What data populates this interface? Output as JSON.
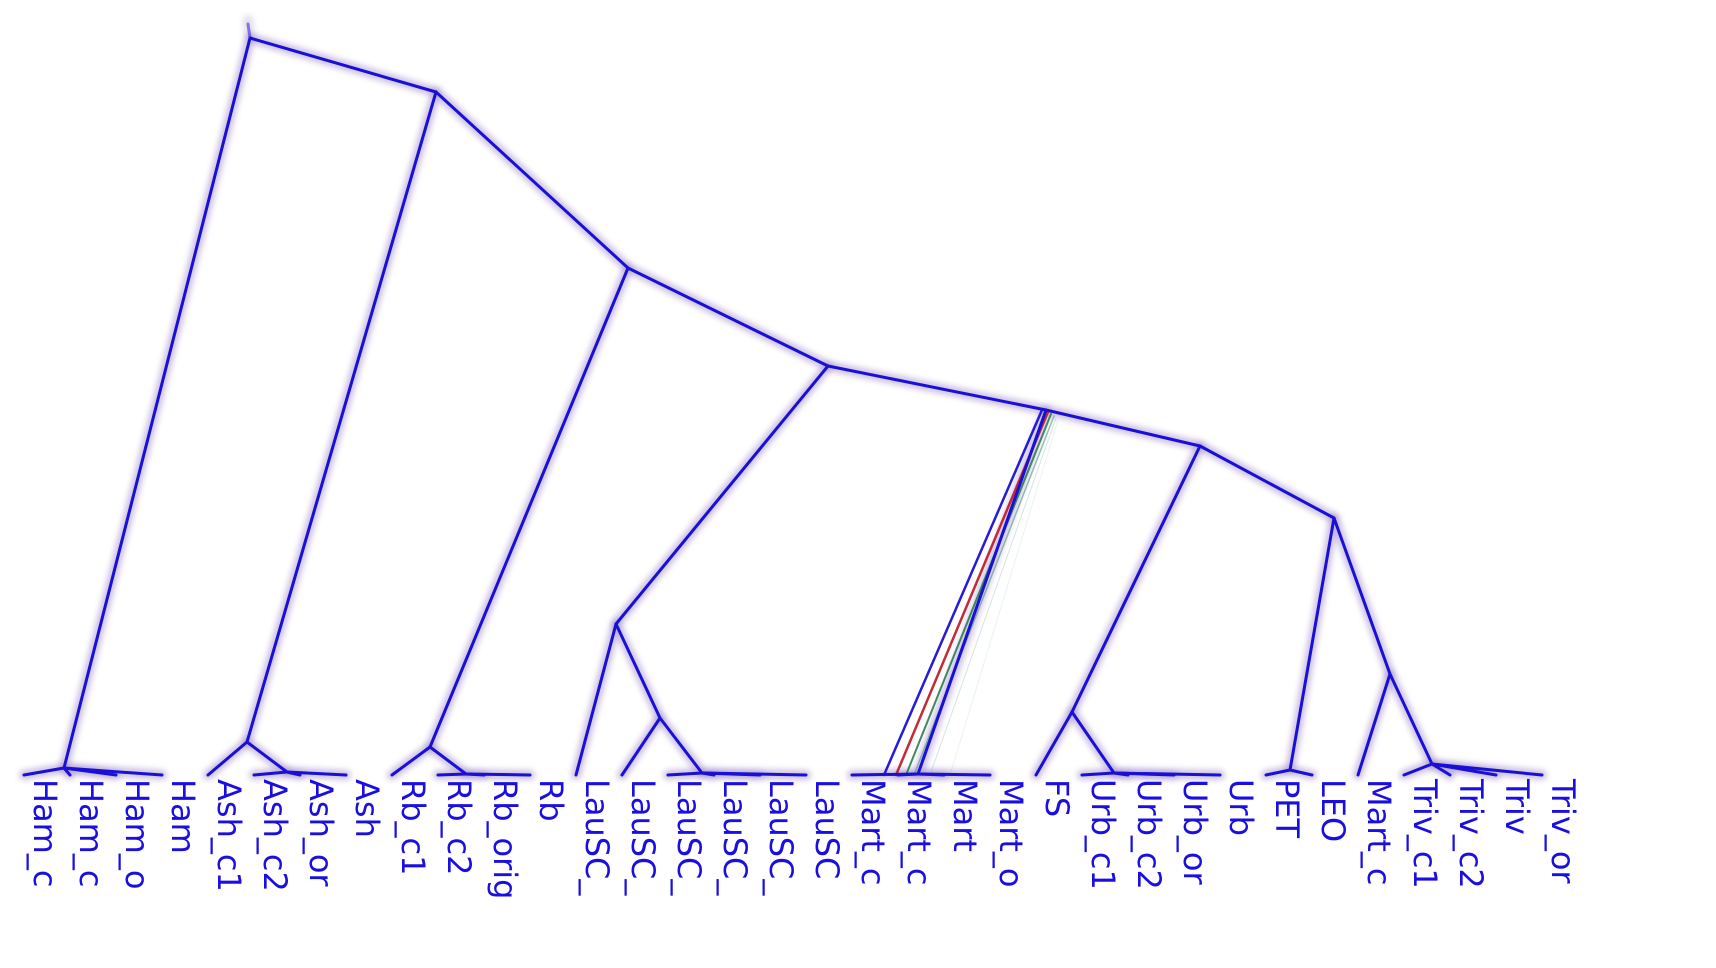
{
  "tree": {
    "colors": {
      "main": "#1a0fd6",
      "halo": "#6b4aa8",
      "alt_red": "#c0202a",
      "alt_green": "#2e7d4f",
      "alt_teal": "#4a9a7a",
      "label": "#1a0fe0"
    },
    "tips": [
      {
        "id": "t1",
        "label": "Ham_c"
      },
      {
        "id": "t2",
        "label": "Ham_c"
      },
      {
        "id": "t3",
        "label": "Ham_o"
      },
      {
        "id": "t4",
        "label": "Ham"
      },
      {
        "id": "t5",
        "label": "Ash_c1"
      },
      {
        "id": "t6",
        "label": "Ash_c2"
      },
      {
        "id": "t7",
        "label": "Ash_or"
      },
      {
        "id": "t8",
        "label": "Ash"
      },
      {
        "id": "t9",
        "label": "Rb_c1"
      },
      {
        "id": "t10",
        "label": "Rb_c2"
      },
      {
        "id": "t11",
        "label": "Rb_orig"
      },
      {
        "id": "t12",
        "label": "Rb"
      },
      {
        "id": "t13",
        "label": "LauSC_"
      },
      {
        "id": "t14",
        "label": "LauSC_"
      },
      {
        "id": "t15",
        "label": "LauSC_"
      },
      {
        "id": "t16",
        "label": "LauSC_"
      },
      {
        "id": "t17",
        "label": "LauSC_"
      },
      {
        "id": "t18",
        "label": "LauSC"
      },
      {
        "id": "t19",
        "label": "Mart_c"
      },
      {
        "id": "t20",
        "label": "Mart_c"
      },
      {
        "id": "t21",
        "label": "Mart"
      },
      {
        "id": "t22",
        "label": "Mart_o"
      },
      {
        "id": "t23",
        "label": "FS"
      },
      {
        "id": "t24",
        "label": "Urb_c1"
      },
      {
        "id": "t25",
        "label": "Urb_c2"
      },
      {
        "id": "t26",
        "label": "Urb_or"
      },
      {
        "id": "t27",
        "label": "Urb"
      },
      {
        "id": "t28",
        "label": "PET"
      },
      {
        "id": "t29",
        "label": "LEO"
      },
      {
        "id": "t30",
        "label": "Mart_c"
      },
      {
        "id": "t31",
        "label": "Triv_c1"
      },
      {
        "id": "t32",
        "label": "Triv_c2"
      },
      {
        "id": "t33",
        "label": "Triv"
      },
      {
        "id": "t34",
        "label": "Triv_or"
      }
    ],
    "topology": {
      "id": "root",
      "children": [
        {
          "id": "ham",
          "children": [
            {
              "tip": "t1"
            },
            {
              "tip": "t2"
            },
            {
              "tip": "t3"
            },
            {
              "tip": "t4"
            }
          ]
        },
        {
          "id": "n2",
          "children": [
            {
              "id": "ash",
              "children": [
                {
                  "tip": "t5"
                },
                {
                  "id": "ash2",
                  "children": [
                    {
                      "tip": "t6"
                    },
                    {
                      "tip": "t7"
                    },
                    {
                      "tip": "t8"
                    }
                  ]
                }
              ]
            },
            {
              "id": "n3",
              "children": [
                {
                  "id": "rb",
                  "children": [
                    {
                      "tip": "t9"
                    },
                    {
                      "id": "rb2",
                      "children": [
                        {
                          "tip": "t10"
                        },
                        {
                          "tip": "t11"
                        },
                        {
                          "tip": "t12"
                        }
                      ]
                    }
                  ]
                },
                {
                  "id": "n4",
                  "children": [
                    {
                      "id": "lau",
                      "children": [
                        {
                          "tip": "t13"
                        },
                        {
                          "id": "lau2",
                          "children": [
                            {
                              "tip": "t14"
                            },
                            {
                              "id": "lau3",
                              "children": [
                                {
                                  "tip": "t15"
                                },
                                {
                                  "tip": "t16"
                                },
                                {
                                  "tip": "t17"
                                },
                                {
                                  "tip": "t18"
                                }
                              ]
                            }
                          ]
                        }
                      ]
                    },
                    {
                      "id": "n5",
                      "children": [
                        {
                          "id": "mart",
                          "alt": true,
                          "children": [
                            {
                              "tip": "t19"
                            },
                            {
                              "tip": "t20"
                            },
                            {
                              "tip": "t21"
                            },
                            {
                              "tip": "t22"
                            }
                          ]
                        },
                        {
                          "id": "n6",
                          "children": [
                            {
                              "id": "urb",
                              "children": [
                                {
                                  "tip": "t23"
                                },
                                {
                                  "id": "urb2",
                                  "children": [
                                    {
                                      "tip": "t24"
                                    },
                                    {
                                      "tip": "t25"
                                    },
                                    {
                                      "tip": "t26"
                                    },
                                    {
                                      "tip": "t27"
                                    }
                                  ]
                                }
                              ]
                            },
                            {
                              "id": "n7",
                              "children": [
                                {
                                  "id": "petleo",
                                  "children": [
                                    {
                                      "tip": "t28"
                                    },
                                    {
                                      "tip": "t29"
                                    }
                                  ]
                                },
                                {
                                  "id": "triv",
                                  "children": [
                                    {
                                      "tip": "t30"
                                    },
                                    {
                                      "id": "triv2",
                                      "children": [
                                        {
                                          "tip": "t31"
                                        },
                                        {
                                          "tip": "t32"
                                        },
                                        {
                                          "tip": "t33"
                                        },
                                        {
                                          "tip": "t34"
                                        }
                                      ]
                                    }
                                  ]
                                }
                              ]
                            }
                          ]
                        }
                      ]
                    }
                  ]
                }
              ]
            }
          ]
        }
      ]
    }
  }
}
